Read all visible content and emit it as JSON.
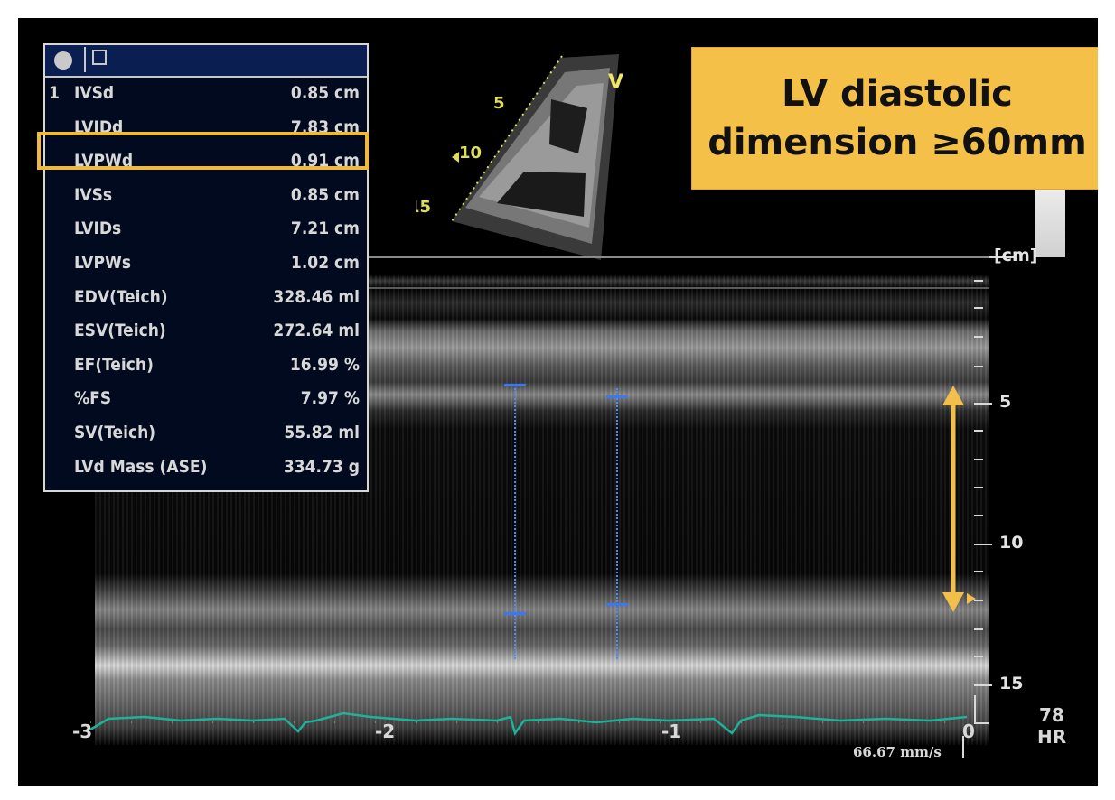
{
  "banner": {
    "line1": "LV diastolic",
    "line2": "dimension ≥60mm"
  },
  "measurements": [
    {
      "index": "1",
      "label": "IVSd",
      "value": "0.85 cm"
    },
    {
      "index": "",
      "label": "LVIDd",
      "value": "7.83 cm"
    },
    {
      "index": "",
      "label": "LVPWd",
      "value": "0.91 cm"
    },
    {
      "index": "",
      "label": "IVSs",
      "value": "0.85 cm"
    },
    {
      "index": "",
      "label": "LVIDs",
      "value": "7.21 cm"
    },
    {
      "index": "",
      "label": "LVPWs",
      "value": "1.02 cm"
    },
    {
      "index": "",
      "label": "EDV(Teich)",
      "value": "328.46 ml"
    },
    {
      "index": "",
      "label": "ESV(Teich)",
      "value": "272.64 ml"
    },
    {
      "index": "",
      "label": "EF(Teich)",
      "value": "16.99 %"
    },
    {
      "index": "",
      "label": "%FS",
      "value": "7.97 %"
    },
    {
      "index": "",
      "label": "SV(Teich)",
      "value": "55.82 ml"
    },
    {
      "index": "",
      "label": "LVd Mass (ASE)",
      "value": "334.73 g"
    }
  ],
  "sector_scale": {
    "top": "5",
    "mid": "10",
    "bottom": "15"
  },
  "sector_marker": "V",
  "depth_scale": {
    "unit": "[cm]",
    "label_5": "5",
    "label_10": "10",
    "label_15": "15"
  },
  "time_axis": {
    "t1": "-3",
    "t2": "-2",
    "t3": "-1",
    "t4": "0"
  },
  "sweep_speed": "66.67 mm/s",
  "heart_rate": {
    "value": "78",
    "unit": "HR"
  },
  "colors": {
    "highlight": "#f1b93c",
    "banner_bg": "#f5c047",
    "ecg": "#1fb29a",
    "arrow": "#f2c04a",
    "calipers": "#3978f5"
  }
}
